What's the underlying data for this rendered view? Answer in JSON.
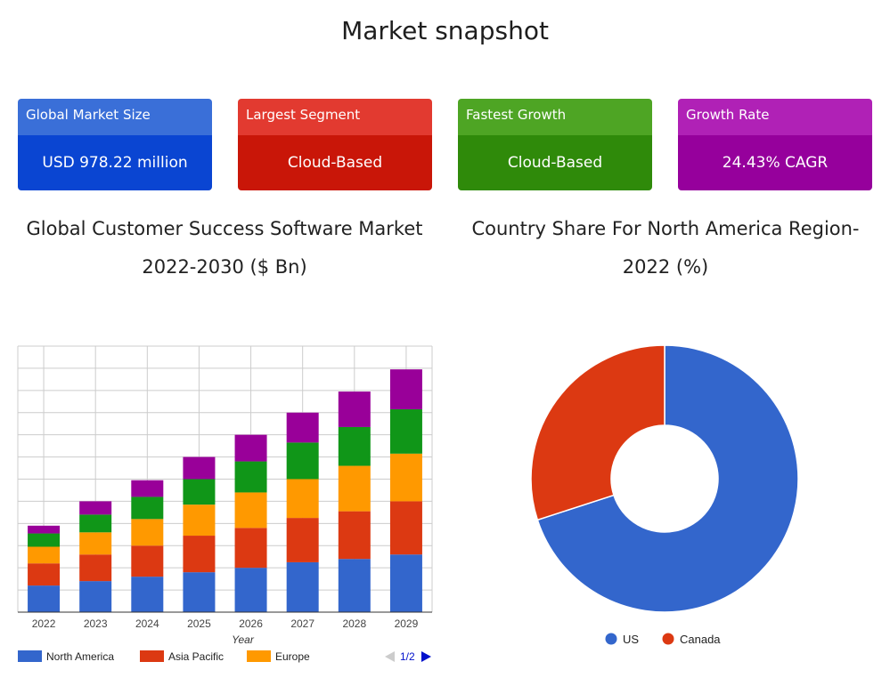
{
  "page": {
    "title": "Market snapshot"
  },
  "cards": [
    {
      "label": "Global Market Size",
      "value": "USD 978.22 million"
    },
    {
      "label": "Largest Segment",
      "value": "Cloud-Based"
    },
    {
      "label": "Fastest Growth",
      "value": "Cloud-Based"
    },
    {
      "label": "Growth Rate",
      "value": "24.43% CAGR"
    }
  ],
  "chart_titles": {
    "bar": "Global Customer Success Software Market 2022-2030 ($ Bn)",
    "pie": "Country Share For North America Region- 2022 (%)"
  },
  "legend_pager": {
    "page": "1/2"
  },
  "colors": {
    "north_america": "#3366cc",
    "asia_pacific": "#dc3912",
    "europe": "#ff9900",
    "green_series": "#109618",
    "purple_series": "#990099",
    "us": "#3366cc",
    "canada": "#dc3912"
  },
  "chart_data": [
    {
      "type": "bar",
      "stacked": true,
      "title": "Global Customer Success Software Market 2022-2030 ($ Bn)",
      "xlabel": "Year",
      "categories": [
        "2022",
        "2023",
        "2024",
        "2025",
        "2026",
        "2027",
        "2028",
        "2029"
      ],
      "ylim": [
        0,
        12
      ],
      "grid": true,
      "legend": "bottom",
      "series": [
        {
          "name": "North America",
          "values": [
            1.2,
            1.4,
            1.6,
            1.8,
            2.0,
            2.25,
            2.4,
            2.6
          ]
        },
        {
          "name": "Asia Pacific",
          "values": [
            1.0,
            1.2,
            1.4,
            1.65,
            1.8,
            2.0,
            2.15,
            2.4
          ]
        },
        {
          "name": "Europe",
          "values": [
            0.75,
            1.0,
            1.2,
            1.4,
            1.6,
            1.75,
            2.05,
            2.15
          ]
        },
        {
          "values": [
            0.6,
            0.8,
            1.0,
            1.15,
            1.4,
            1.65,
            1.75,
            2.0
          ]
        },
        {
          "values": [
            0.35,
            0.6,
            0.75,
            1.0,
            1.2,
            1.35,
            1.6,
            1.8
          ]
        }
      ]
    },
    {
      "type": "pie",
      "donut": true,
      "title": "Country Share For North America Region- 2022 (%)",
      "legend": "bottom",
      "series": [
        {
          "name": "US",
          "value": 70
        },
        {
          "name": "Canada",
          "value": 30
        }
      ]
    }
  ]
}
